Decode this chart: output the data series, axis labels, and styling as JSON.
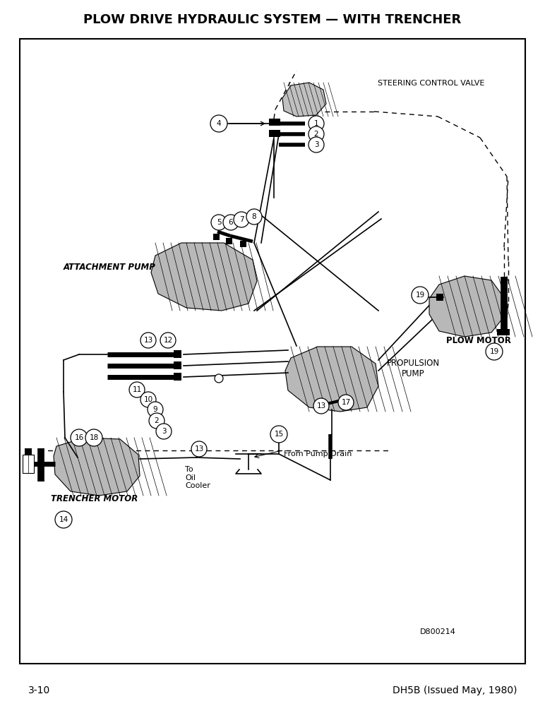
{
  "title_italic": "PLOW DRIVE HYDRAULIC SYSTEM ",
  "title_bold": "— WITH TRENCHER",
  "footer_left": "3-10",
  "footer_right": "DH5B (Issued May, 1980)",
  "diagram_id": "D800214",
  "bg_color": "#ffffff",
  "label_scv": "STEERING CONTROL VALVE",
  "label_ap": "ATTACHMENT PUMP",
  "label_pp": "PROPULSION\nPUMP",
  "label_pm": "PLOW MOTOR",
  "label_tm": "TRENCHER MOTOR",
  "label_oil": "To\nOil\nCooler",
  "label_drain": "From Pump Drain"
}
